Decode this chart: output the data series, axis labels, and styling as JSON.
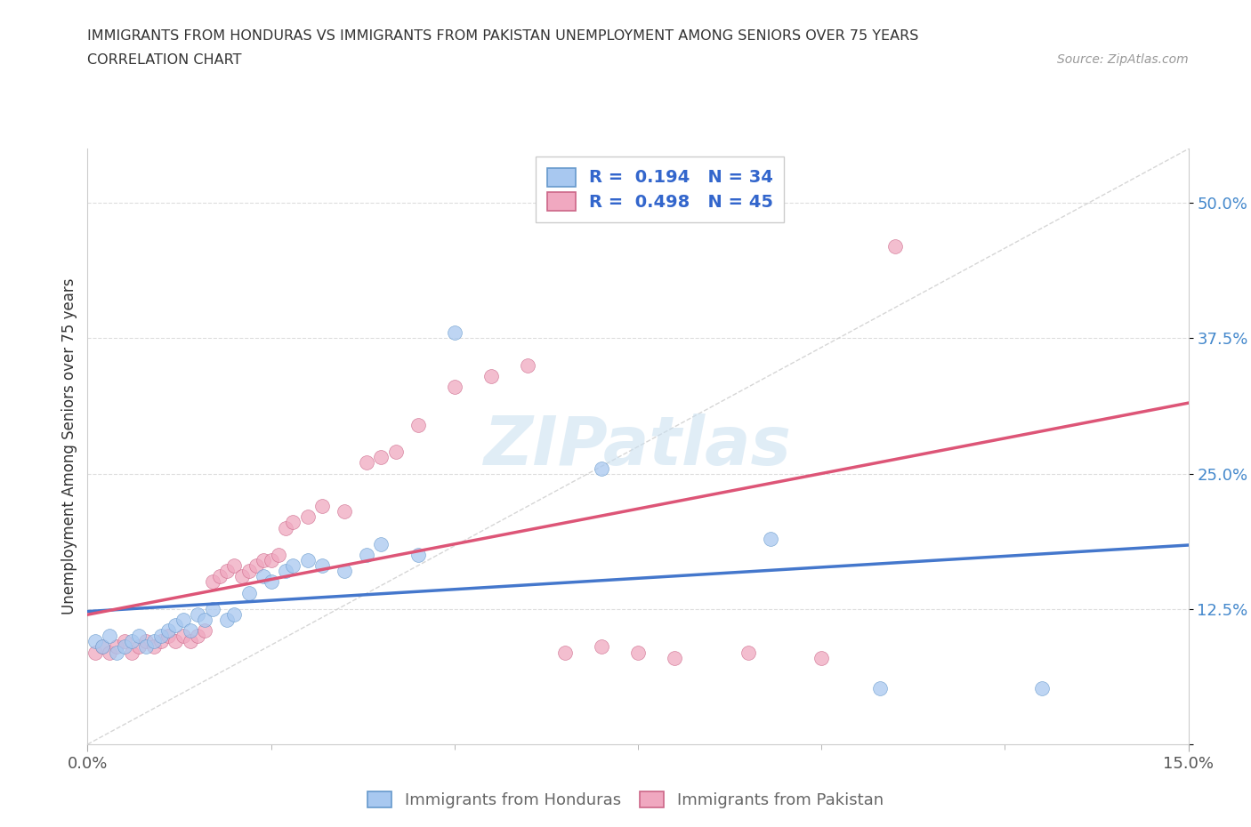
{
  "title_line1": "IMMIGRANTS FROM HONDURAS VS IMMIGRANTS FROM PAKISTAN UNEMPLOYMENT AMONG SENIORS OVER 75 YEARS",
  "title_line2": "CORRELATION CHART",
  "source_text": "Source: ZipAtlas.com",
  "ylabel": "Unemployment Among Seniors over 75 years",
  "xlim": [
    0.0,
    0.15
  ],
  "ylim": [
    0.0,
    0.55
  ],
  "ytick_values": [
    0.0,
    0.125,
    0.25,
    0.375,
    0.5
  ],
  "ytick_labels": [
    "",
    "12.5%",
    "25.0%",
    "37.5%",
    "50.0%"
  ],
  "xtick_values": [
    0.0,
    0.15
  ],
  "xtick_labels": [
    "0.0%",
    "15.0%"
  ],
  "color_honduras": "#a8c8f0",
  "color_pakistan": "#f0a8c0",
  "line_color_honduras": "#4477cc",
  "line_color_pakistan": "#dd5577",
  "watermark_text": "ZIPatlas",
  "honduras_x": [
    0.001,
    0.002,
    0.003,
    0.004,
    0.005,
    0.006,
    0.007,
    0.008,
    0.009,
    0.01,
    0.011,
    0.012,
    0.013,
    0.014,
    0.015,
    0.016,
    0.017,
    0.019,
    0.02,
    0.022,
    0.024,
    0.025,
    0.027,
    0.028,
    0.03,
    0.032,
    0.035,
    0.038,
    0.04,
    0.045,
    0.05,
    0.07,
    0.093,
    0.108,
    0.13
  ],
  "honduras_y": [
    0.095,
    0.09,
    0.1,
    0.085,
    0.09,
    0.095,
    0.1,
    0.09,
    0.095,
    0.1,
    0.105,
    0.11,
    0.115,
    0.105,
    0.12,
    0.115,
    0.125,
    0.115,
    0.12,
    0.14,
    0.155,
    0.15,
    0.16,
    0.165,
    0.17,
    0.165,
    0.16,
    0.175,
    0.185,
    0.175,
    0.38,
    0.255,
    0.19,
    0.052,
    0.052
  ],
  "pakistan_x": [
    0.001,
    0.002,
    0.003,
    0.004,
    0.005,
    0.006,
    0.007,
    0.008,
    0.009,
    0.01,
    0.011,
    0.012,
    0.013,
    0.014,
    0.015,
    0.016,
    0.017,
    0.018,
    0.019,
    0.02,
    0.021,
    0.022,
    0.023,
    0.024,
    0.025,
    0.026,
    0.027,
    0.028,
    0.03,
    0.032,
    0.035,
    0.038,
    0.04,
    0.042,
    0.045,
    0.05,
    0.055,
    0.06,
    0.065,
    0.07,
    0.075,
    0.08,
    0.09,
    0.1,
    0.11
  ],
  "pakistan_y": [
    0.085,
    0.09,
    0.085,
    0.09,
    0.095,
    0.085,
    0.09,
    0.095,
    0.09,
    0.095,
    0.1,
    0.095,
    0.1,
    0.095,
    0.1,
    0.105,
    0.15,
    0.155,
    0.16,
    0.165,
    0.155,
    0.16,
    0.165,
    0.17,
    0.17,
    0.175,
    0.2,
    0.205,
    0.21,
    0.22,
    0.215,
    0.26,
    0.265,
    0.27,
    0.295,
    0.33,
    0.34,
    0.35,
    0.085,
    0.09,
    0.085,
    0.08,
    0.085,
    0.08,
    0.46
  ]
}
